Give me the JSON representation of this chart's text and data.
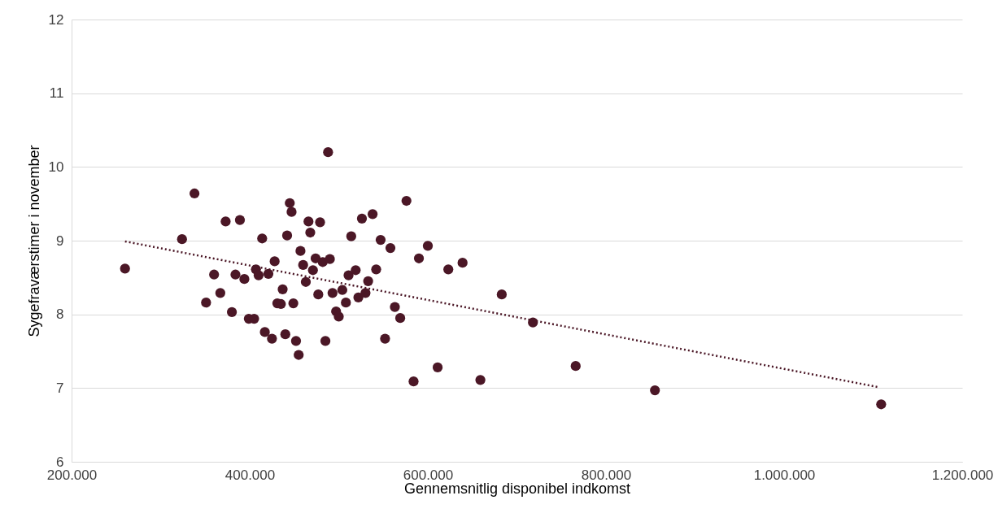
{
  "chart_data": {
    "type": "scatter",
    "xlabel": "Gennemsnitlig disponibel indkomst",
    "ylabel": "Sygefraværstimer i november",
    "xlim": [
      200000,
      1200000
    ],
    "xticks": [
      {
        "value": 200000,
        "label": "200.000"
      },
      {
        "value": 400000,
        "label": "400.000"
      },
      {
        "value": 600000,
        "label": "600.000"
      },
      {
        "value": 800000,
        "label": "800.000"
      },
      {
        "value": 1000000,
        "label": "1.000.000"
      },
      {
        "value": 1200000,
        "label": "1.200.000"
      }
    ],
    "ylim": [
      6,
      12
    ],
    "yticks": [
      6,
      7,
      8,
      9,
      10,
      11,
      12
    ],
    "grid": "y",
    "marker": "circle",
    "series": [
      {
        "color": "#4b1726",
        "x": [
          260000,
          324000,
          338000,
          351000,
          360000,
          367000,
          373000,
          380000,
          384000,
          389000,
          394000,
          399000,
          405000,
          407000,
          410000,
          414000,
          417000,
          421000,
          425000,
          428000,
          431000,
          435000,
          437000,
          440000,
          442000,
          445000,
          447000,
          449000,
          452000,
          455000,
          457000,
          460000,
          463000,
          466000,
          468000,
          471000,
          474000,
          477000,
          479000,
          482000,
          485000,
          488000,
          490000,
          493000,
          497000,
          500000,
          504000,
          508000,
          511000,
          514000,
          519000,
          522000,
          526000,
          530000,
          533000,
          538000,
          542000,
          547000,
          552000,
          558000,
          563000,
          569000,
          576000,
          584000,
          590000,
          600000,
          611000,
          623000,
          639000,
          659000,
          683000,
          718000,
          766000,
          855000,
          1109000
        ],
        "values": [
          8.62,
          9.02,
          9.64,
          8.16,
          8.54,
          8.29,
          9.26,
          8.03,
          8.54,
          9.28,
          8.48,
          7.94,
          7.94,
          8.61,
          8.53,
          9.03,
          7.76,
          8.55,
          7.67,
          8.72,
          8.15,
          8.14,
          8.34,
          7.73,
          9.07,
          9.51,
          9.39,
          8.15,
          7.64,
          7.45,
          8.86,
          8.67,
          8.44,
          9.26,
          9.11,
          8.6,
          8.76,
          8.27,
          9.25,
          8.71,
          7.64,
          10.2,
          8.75,
          8.29,
          8.04,
          7.97,
          8.33,
          8.16,
          8.53,
          9.06,
          8.6,
          8.23,
          9.3,
          8.29,
          8.45,
          9.36,
          8.61,
          9.01,
          7.67,
          8.9,
          8.1,
          7.95,
          9.54,
          7.09,
          8.76,
          8.93,
          7.28,
          8.61,
          8.7,
          7.11,
          8.27,
          7.89,
          7.3,
          6.97,
          6.78
        ]
      },
      {
        "type": "line",
        "line_style": "dotted",
        "marker": "none",
        "color": "#4b1726",
        "x": [
          260000,
          1107000
        ],
        "values": [
          8.99,
          7.01
        ]
      }
    ]
  }
}
